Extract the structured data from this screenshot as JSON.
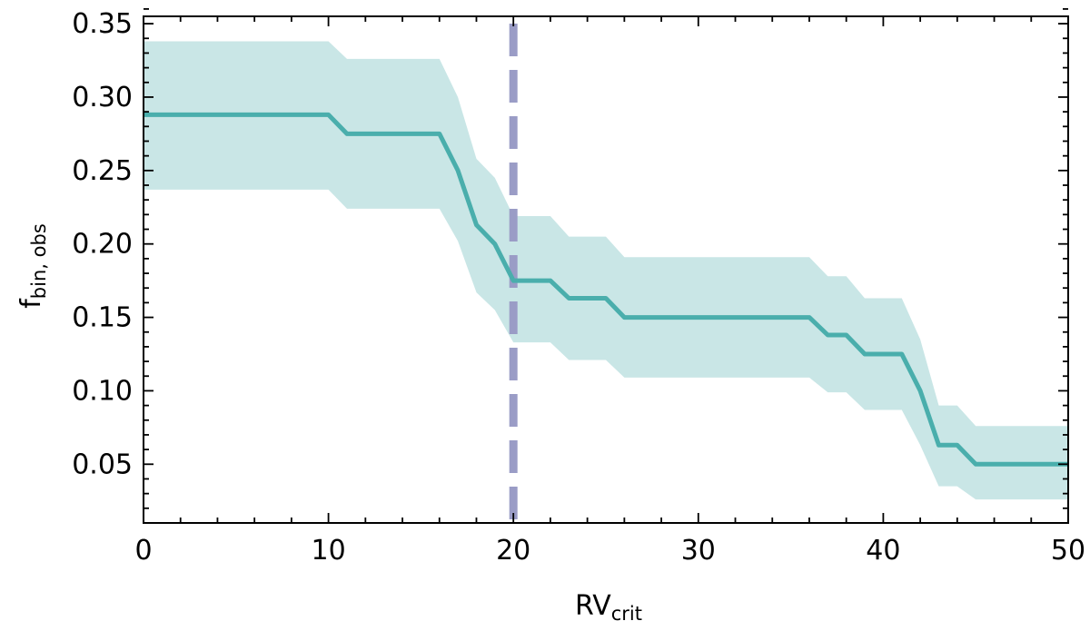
{
  "chart_data": {
    "type": "line",
    "xlabel": {
      "main": "RV",
      "sub": "crit"
    },
    "ylabel": {
      "main": "f",
      "sub": "bin, obs"
    },
    "xlim": [
      0,
      50
    ],
    "ylim": [
      0.01,
      0.355
    ],
    "x_ticks": [
      0,
      10,
      20,
      30,
      40,
      50
    ],
    "x_tick_labels": [
      "0",
      "10",
      "20",
      "30",
      "40",
      "50"
    ],
    "y_ticks": [
      0.05,
      0.1,
      0.15,
      0.2,
      0.25,
      0.3,
      0.35
    ],
    "y_tick_labels": [
      "0.05",
      "0.10",
      "0.15",
      "0.20",
      "0.25",
      "0.30",
      "0.35"
    ],
    "x_minor_step": 2,
    "y_minor_step": 0.01,
    "grid": false,
    "series": [
      {
        "x": [
          0,
          10,
          11,
          16,
          17,
          18,
          19,
          20,
          22,
          23,
          25,
          26,
          36,
          37,
          38,
          39,
          41,
          42,
          43,
          44,
          45,
          50
        ],
        "y": [
          0.288,
          0.288,
          0.275,
          0.275,
          0.25,
          0.213,
          0.2,
          0.175,
          0.175,
          0.163,
          0.163,
          0.15,
          0.15,
          0.138,
          0.138,
          0.125,
          0.125,
          0.1,
          0.063,
          0.063,
          0.05,
          0.05
        ],
        "lower": [
          0.237,
          0.237,
          0.224,
          0.224,
          0.202,
          0.167,
          0.155,
          0.133,
          0.133,
          0.121,
          0.121,
          0.109,
          0.109,
          0.099,
          0.099,
          0.087,
          0.087,
          0.063,
          0.035,
          0.035,
          0.026,
          0.026
        ],
        "upper": [
          0.338,
          0.338,
          0.326,
          0.326,
          0.3,
          0.258,
          0.245,
          0.219,
          0.219,
          0.205,
          0.205,
          0.191,
          0.191,
          0.178,
          0.178,
          0.163,
          0.163,
          0.135,
          0.09,
          0.09,
          0.076,
          0.076
        ],
        "line_color": "#4aaeac",
        "band_color": "#c9e6e6"
      }
    ],
    "vline": {
      "x": 20,
      "color": "#9a9cc6",
      "style": "dashed"
    }
  }
}
